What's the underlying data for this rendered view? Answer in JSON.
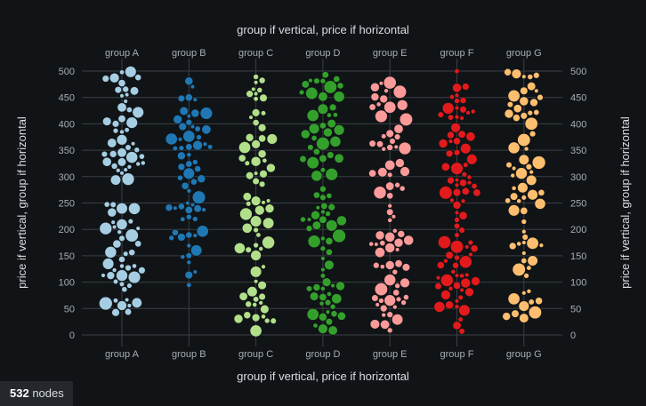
{
  "chart_data": {
    "type": "scatter",
    "title_top": "group if vertical, price if horizontal",
    "title_bottom": "group if vertical, price if horizontal",
    "ylabel_left": "price if vertical, group if horizontal",
    "ylabel_right": "price if vertical, group if horizontal",
    "categories": [
      "group A",
      "group B",
      "group C",
      "group D",
      "group E",
      "group F",
      "group G"
    ],
    "colors": [
      "#a6cee3",
      "#1f78b4",
      "#b2df8a",
      "#33a02c",
      "#fb9a99",
      "#e31a1c",
      "#fdbf6f"
    ],
    "ylim": [
      0,
      500
    ],
    "yticks": [
      0,
      50,
      100,
      150,
      200,
      250,
      300,
      350,
      400,
      450,
      500
    ],
    "grid": true,
    "node_count": 532,
    "density_profiles": [
      [
        [
          0,
          0
        ],
        [
          20,
          4
        ],
        [
          60,
          8
        ],
        [
          90,
          9
        ],
        [
          140,
          4
        ],
        [
          175,
          9
        ],
        [
          200,
          7
        ],
        [
          250,
          6
        ],
        [
          280,
          4
        ],
        [
          320,
          10
        ],
        [
          350,
          8
        ],
        [
          380,
          4
        ],
        [
          420,
          5
        ],
        [
          470,
          9
        ],
        [
          500,
          6
        ]
      ],
      [
        [
          0,
          3
        ],
        [
          20,
          2
        ],
        [
          50,
          2
        ],
        [
          100,
          3
        ],
        [
          125,
          3
        ],
        [
          140,
          2
        ],
        [
          175,
          7
        ],
        [
          200,
          6
        ],
        [
          230,
          10
        ],
        [
          260,
          6
        ],
        [
          300,
          7
        ],
        [
          330,
          6
        ],
        [
          360,
          8
        ],
        [
          400,
          5
        ],
        [
          440,
          3
        ],
        [
          470,
          3
        ],
        [
          500,
          2
        ]
      ],
      [
        [
          0,
          0
        ],
        [
          30,
          5
        ],
        [
          50,
          6
        ],
        [
          80,
          4
        ],
        [
          120,
          3
        ],
        [
          150,
          5
        ],
        [
          200,
          6
        ],
        [
          235,
          7
        ],
        [
          270,
          5
        ],
        [
          310,
          3
        ],
        [
          350,
          7
        ],
        [
          390,
          6
        ],
        [
          420,
          6
        ],
        [
          470,
          7
        ],
        [
          500,
          4
        ]
      ],
      [
        [
          0,
          3
        ],
        [
          40,
          9
        ],
        [
          70,
          10
        ],
        [
          100,
          8
        ],
        [
          120,
          4
        ],
        [
          160,
          4
        ],
        [
          200,
          8
        ],
        [
          240,
          7
        ],
        [
          270,
          4
        ],
        [
          300,
          8
        ],
        [
          330,
          5
        ],
        [
          360,
          8
        ],
        [
          390,
          6
        ],
        [
          430,
          5
        ],
        [
          480,
          8
        ],
        [
          500,
          6
        ]
      ],
      [
        [
          0,
          2
        ],
        [
          40,
          8
        ],
        [
          70,
          7
        ],
        [
          100,
          8
        ],
        [
          150,
          5
        ],
        [
          200,
          4
        ],
        [
          250,
          4
        ],
        [
          290,
          6
        ],
        [
          330,
          9
        ],
        [
          360,
          8
        ],
        [
          400,
          4
        ],
        [
          430,
          9
        ],
        [
          460,
          6
        ],
        [
          490,
          3
        ],
        [
          500,
          1
        ]
      ],
      [
        [
          0,
          1
        ],
        [
          30,
          5
        ],
        [
          60,
          7
        ],
        [
          100,
          10
        ],
        [
          120,
          10
        ],
        [
          150,
          7
        ],
        [
          180,
          8
        ],
        [
          200,
          6
        ],
        [
          230,
          4
        ],
        [
          270,
          6
        ],
        [
          300,
          7
        ],
        [
          350,
          6
        ],
        [
          380,
          6
        ],
        [
          420,
          8
        ],
        [
          460,
          7
        ],
        [
          500,
          5
        ]
      ],
      [
        [
          0,
          0
        ],
        [
          25,
          5
        ],
        [
          50,
          3
        ],
        [
          80,
          4
        ],
        [
          120,
          4
        ],
        [
          145,
          6
        ],
        [
          170,
          5
        ],
        [
          200,
          7
        ],
        [
          240,
          6
        ],
        [
          270,
          7
        ],
        [
          300,
          7
        ],
        [
          330,
          8
        ],
        [
          370,
          5
        ],
        [
          400,
          3
        ],
        [
          430,
          6
        ],
        [
          470,
          5
        ],
        [
          500,
          5
        ]
      ]
    ]
  },
  "footer": {
    "count": "532",
    "label": "nodes"
  }
}
